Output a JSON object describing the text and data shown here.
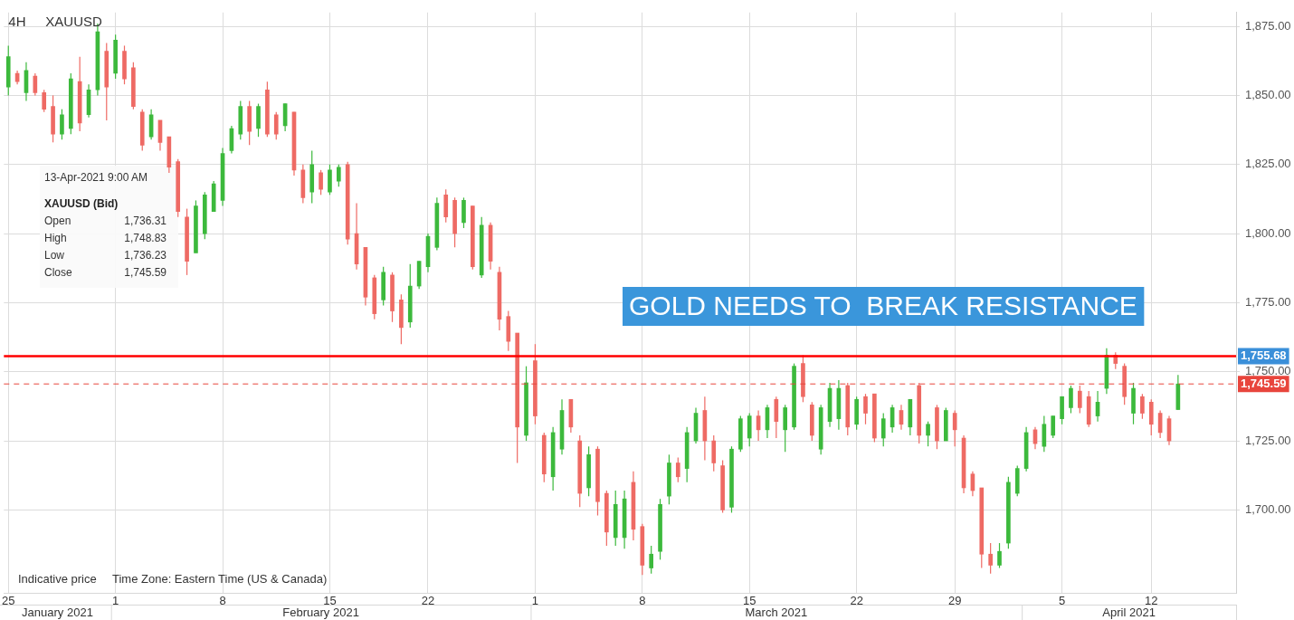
{
  "chart_data": {
    "type": "candlestick",
    "title": "4H",
    "subtitle": "XAUUSD",
    "categories": [
      "25",
      null,
      null,
      null,
      null,
      null,
      null,
      null,
      null,
      null,
      null,
      null,
      "1",
      null,
      null,
      null,
      null,
      null,
      null,
      null,
      null,
      null,
      null,
      null,
      "8",
      null,
      null,
      null,
      null,
      null,
      null,
      null,
      null,
      null,
      null,
      null,
      "15",
      null,
      null,
      null,
      null,
      null,
      null,
      null,
      null,
      null,
      null,
      "22",
      null,
      null,
      null,
      null,
      null,
      null,
      null,
      null,
      null,
      null,
      null,
      "1",
      null,
      null,
      null,
      null,
      null,
      null,
      null,
      null,
      null,
      null,
      null,
      "8",
      null,
      null,
      null,
      null,
      null,
      null,
      null,
      null,
      null,
      null,
      null,
      "15",
      null,
      null,
      null,
      null,
      null,
      null,
      null,
      null,
      null,
      null,
      null,
      "22",
      null,
      null,
      null,
      null,
      null,
      null,
      null,
      null,
      null,
      null,
      "29",
      null,
      null,
      null,
      null,
      null,
      null,
      null,
      null,
      null,
      null,
      null,
      "5",
      null,
      null,
      null,
      null,
      null,
      null,
      null,
      null,
      null,
      "12",
      null,
      null,
      null,
      null,
      null,
      null,
      null,
      null,
      null
    ],
    "ohlc": [
      [
        1853,
        1868,
        1850,
        1864
      ],
      [
        1858,
        1859,
        1854,
        1855
      ],
      [
        1851,
        1862,
        1848,
        1859
      ],
      [
        1857,
        1858,
        1850,
        1851
      ],
      [
        1851,
        1852,
        1844,
        1845
      ],
      [
        1846,
        1850,
        1833,
        1836
      ],
      [
        1836,
        1845,
        1834,
        1843
      ],
      [
        1838,
        1858,
        1836,
        1856
      ],
      [
        1855,
        1864,
        1837,
        1840
      ],
      [
        1843,
        1854,
        1842,
        1852
      ],
      [
        1852,
        1876,
        1850,
        1873
      ],
      [
        1866,
        1869,
        1841,
        1853
      ],
      [
        1858,
        1872,
        1856,
        1870
      ],
      [
        1866,
        1868,
        1854,
        1856
      ],
      [
        1860,
        1862,
        1845,
        1846
      ],
      [
        1844,
        1845,
        1830,
        1832
      ],
      [
        1835,
        1845,
        1834,
        1843
      ],
      [
        1841,
        1841,
        1830,
        1833
      ],
      [
        1835,
        1835,
        1822,
        1824
      ],
      [
        1826,
        1827,
        1806,
        1808
      ],
      [
        1806,
        1809,
        1785,
        1790
      ],
      [
        1793,
        1812,
        1793,
        1810
      ],
      [
        1800,
        1815,
        1798,
        1814
      ],
      [
        1808,
        1819,
        1808,
        1818
      ],
      [
        1812,
        1831,
        1810,
        1829
      ],
      [
        1830,
        1839,
        1829,
        1838
      ],
      [
        1836,
        1848,
        1834,
        1846
      ],
      [
        1846,
        1848,
        1832,
        1837
      ],
      [
        1838,
        1847,
        1835,
        1846
      ],
      [
        1852,
        1855,
        1835,
        1836
      ],
      [
        1843,
        1844,
        1834,
        1836
      ],
      [
        1839,
        1847,
        1837,
        1847
      ],
      [
        1844,
        1844,
        1821,
        1823
      ],
      [
        1823,
        1825,
        1811,
        1813
      ],
      [
        1815,
        1830,
        1811,
        1825
      ],
      [
        1822,
        1823,
        1814,
        1816
      ],
      [
        1815,
        1825,
        1814,
        1823
      ],
      [
        1819,
        1825,
        1817,
        1824
      ],
      [
        1825,
        1826,
        1796,
        1798
      ],
      [
        1800,
        1811,
        1787,
        1789
      ],
      [
        1795,
        1795,
        1774,
        1777
      ],
      [
        1784,
        1785,
        1769,
        1771
      ],
      [
        1776,
        1788,
        1774,
        1786
      ],
      [
        1785,
        1786,
        1768,
        1772
      ],
      [
        1776,
        1778,
        1760,
        1766
      ],
      [
        1768,
        1789,
        1766,
        1781
      ],
      [
        1781,
        1790,
        1780,
        1790
      ],
      [
        1788,
        1800,
        1786,
        1799
      ],
      [
        1795,
        1813,
        1794,
        1811
      ],
      [
        1814,
        1816,
        1804,
        1806
      ],
      [
        1812,
        1813,
        1795,
        1800
      ],
      [
        1804,
        1813,
        1802,
        1812
      ],
      [
        1810,
        1810,
        1787,
        1788
      ],
      [
        1785,
        1806,
        1784,
        1803
      ],
      [
        1803,
        1804,
        1787,
        1790
      ],
      [
        1786,
        1788,
        1765,
        1769
      ],
      [
        1770,
        1772,
        1757.5,
        1761
      ],
      [
        1764,
        1764,
        1717,
        1730
      ],
      [
        1727,
        1752,
        1725,
        1746
      ],
      [
        1754,
        1760,
        1731,
        1734
      ],
      [
        1727,
        1728,
        1710,
        1713
      ],
      [
        1712,
        1730,
        1707,
        1728
      ],
      [
        1722,
        1740,
        1720,
        1736
      ],
      [
        1740,
        1740,
        1728,
        1730
      ],
      [
        1725,
        1727,
        1701,
        1706
      ],
      [
        1708,
        1723,
        1705,
        1720
      ],
      [
        1722,
        1723,
        1698,
        1703
      ],
      [
        1706,
        1707,
        1687,
        1692
      ],
      [
        1690,
        1707,
        1687,
        1702
      ],
      [
        1690,
        1707,
        1686,
        1704
      ],
      [
        1710,
        1714,
        1689,
        1693
      ],
      [
        1694,
        1695,
        1676.5,
        1680
      ],
      [
        1679,
        1687,
        1677,
        1684
      ],
      [
        1685,
        1704,
        1682,
        1702
      ],
      [
        1705,
        1720,
        1702,
        1717
      ],
      [
        1717,
        1719,
        1710,
        1712
      ],
      [
        1715,
        1730,
        1710,
        1728
      ],
      [
        1725,
        1737,
        1724,
        1735
      ],
      [
        1736,
        1741,
        1718,
        1725
      ],
      [
        1725,
        1727,
        1714,
        1717
      ],
      [
        1716,
        1718,
        1699,
        1700
      ],
      [
        1701,
        1723,
        1699,
        1722
      ],
      [
        1722,
        1734,
        1721,
        1733
      ],
      [
        1726,
        1735,
        1723,
        1734
      ],
      [
        1734,
        1736,
        1725,
        1729
      ],
      [
        1729,
        1738,
        1726,
        1737
      ],
      [
        1740,
        1741,
        1726,
        1732
      ],
      [
        1729,
        1738,
        1721,
        1737
      ],
      [
        1730,
        1753,
        1729,
        1752
      ],
      [
        1753,
        1756,
        1739,
        1741
      ],
      [
        1738,
        1739,
        1725,
        1727
      ],
      [
        1722,
        1738,
        1720,
        1737
      ],
      [
        1732,
        1746,
        1730,
        1744
      ],
      [
        1733,
        1747,
        1729,
        1744
      ],
      [
        1745,
        1746,
        1727,
        1730
      ],
      [
        1731,
        1741,
        1729,
        1740
      ],
      [
        1741,
        1742,
        1731,
        1735
      ],
      [
        1742,
        1742,
        1724.5,
        1726
      ],
      [
        1726,
        1735,
        1723,
        1733
      ],
      [
        1730,
        1738,
        1728,
        1737
      ],
      [
        1736,
        1738,
        1729,
        1731
      ],
      [
        1730,
        1740,
        1727,
        1740
      ],
      [
        1745,
        1746,
        1724,
        1727
      ],
      [
        1727,
        1732,
        1723,
        1731
      ],
      [
        1737,
        1738,
        1722,
        1725
      ],
      [
        1725,
        1737,
        1725,
        1736
      ],
      [
        1735,
        1736,
        1723,
        1729
      ],
      [
        1726,
        1727,
        1706,
        1708
      ],
      [
        1713,
        1714,
        1705,
        1707
      ],
      [
        1708,
        1708,
        1679,
        1684
      ],
      [
        1684,
        1688,
        1677,
        1680
      ],
      [
        1680,
        1688,
        1679,
        1685
      ],
      [
        1688,
        1712,
        1686,
        1710
      ],
      [
        1706,
        1716,
        1705,
        1715
      ],
      [
        1715,
        1730,
        1714,
        1728
      ],
      [
        1729,
        1730,
        1722,
        1724
      ],
      [
        1723,
        1734,
        1721,
        1731
      ],
      [
        1727,
        1734,
        1726,
        1734
      ],
      [
        1733,
        1741,
        1731,
        1741
      ],
      [
        1737,
        1745,
        1735,
        1744
      ],
      [
        1743,
        1745,
        1735,
        1737
      ],
      [
        1741,
        1743,
        1730,
        1731
      ],
      [
        1734,
        1743,
        1732,
        1739
      ],
      [
        1744,
        1758.5,
        1742,
        1756
      ],
      [
        1756,
        1757,
        1751,
        1753
      ],
      [
        1752,
        1753,
        1738,
        1741
      ],
      [
        1735,
        1746,
        1731,
        1744
      ],
      [
        1741,
        1742,
        1733,
        1735
      ],
      [
        1739,
        1740,
        1727,
        1731
      ],
      [
        1735,
        1736,
        1726,
        1728
      ],
      [
        1733,
        1734,
        1723.5,
        1725
      ],
      [
        1736.31,
        1748.83,
        1736.23,
        1745.59
      ],
      null,
      null,
      null,
      null,
      null,
      null
    ],
    "ylim": [
      1670,
      1880
    ],
    "yticks": [
      {
        "value": 1700,
        "label": "1,700.00"
      },
      {
        "value": 1725,
        "label": "1,725.00"
      },
      {
        "value": 1750,
        "label": "1,750.00"
      },
      {
        "value": 1775,
        "label": "1,775.00"
      },
      {
        "value": 1800,
        "label": "1,800.00"
      },
      {
        "value": 1825,
        "label": "1,825.00"
      },
      {
        "value": 1850,
        "label": "1,850.00"
      },
      {
        "value": 1875,
        "label": "1,875.00"
      }
    ],
    "grid": true,
    "ref_lines": [
      {
        "axis": "y",
        "value": 1755.68,
        "label": "1,755.68",
        "color": "#ff0000",
        "line_style": "solid"
      },
      {
        "axis": "y",
        "value": 1745.59,
        "label": "1,745.59",
        "color": "#e8453c",
        "line_style": "dashed"
      }
    ],
    "annotations": [
      "13-Apr-2021 9:00 AM",
      "XAUUSD (Bid)",
      "Open",
      "1,736.31",
      "High",
      "1,748.83",
      "Low",
      "1,736.23",
      "Close",
      "1,745.59",
      "GOLD NEEDS TO  BREAK RESISTANCE",
      "Indicative price",
      "Time Zone: Eastern Time (US & Canada)",
      "January 2021",
      "February 2021",
      "March 2021",
      "April 2021"
    ]
  }
}
